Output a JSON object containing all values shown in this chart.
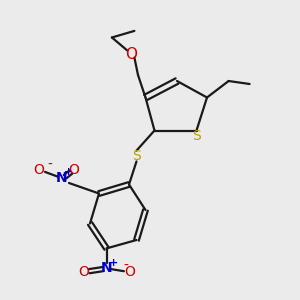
{
  "bg_color": "#ebebeb",
  "bond_color": "#1a1a1a",
  "S_color": "#b8a000",
  "O_color": "#cc0000",
  "N_color": "#0000cc",
  "lw": 1.6,
  "fs": 10,
  "figsize": [
    3.0,
    3.0
  ],
  "dpi": 100,
  "xlim": [
    0,
    10
  ],
  "ylim": [
    0,
    10
  ]
}
